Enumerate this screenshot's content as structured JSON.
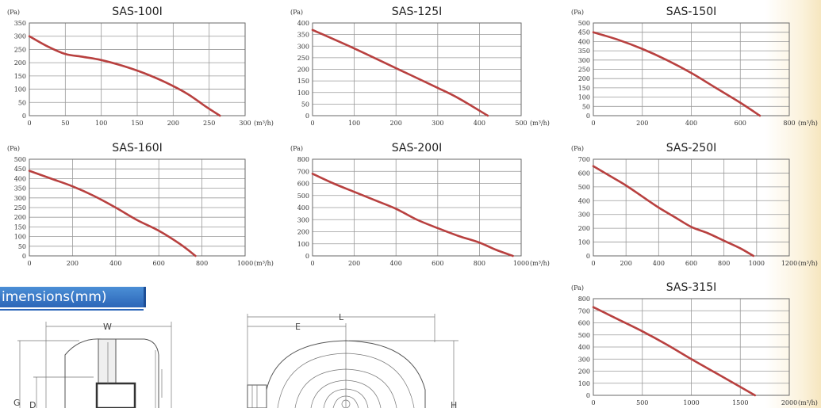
{
  "chart_data": [
    {
      "type": "line",
      "title": "SAS-100I",
      "ylabel": "(Pa)",
      "xunit": "(m³/h)",
      "xlim": [
        0,
        300
      ],
      "ylim": [
        0,
        350
      ],
      "x_ticks": [
        0,
        50,
        100,
        150,
        200,
        250,
        300
      ],
      "y_ticks": [
        0,
        50,
        100,
        150,
        200,
        250,
        300,
        350
      ],
      "grid": true,
      "series": [
        {
          "x": [
            0,
            25,
            50,
            75,
            100,
            130,
            160,
            190,
            220,
            245,
            265
          ],
          "y": [
            300,
            262,
            233,
            222,
            210,
            188,
            160,
            125,
            82,
            35,
            0
          ]
        }
      ]
    },
    {
      "type": "line",
      "title": "SAS-125I",
      "ylabel": "(Pa)",
      "xunit": "(m³/h)",
      "xlim": [
        0,
        500
      ],
      "ylim": [
        0,
        400
      ],
      "x_ticks": [
        0,
        100,
        200,
        300,
        400,
        500
      ],
      "y_ticks": [
        0,
        50,
        100,
        150,
        200,
        250,
        300,
        350,
        400
      ],
      "grid": true,
      "series": [
        {
          "x": [
            0,
            100,
            200,
            300,
            350,
            420
          ],
          "y": [
            370,
            290,
            205,
            120,
            75,
            0
          ]
        }
      ]
    },
    {
      "type": "line",
      "title": "SAS-150I",
      "ylabel": "(Pa)",
      "xunit": "(m³/h)",
      "xlim": [
        0,
        800
      ],
      "ylim": [
        0,
        500
      ],
      "x_ticks": [
        0,
        200,
        400,
        600,
        800
      ],
      "y_ticks": [
        0,
        50,
        100,
        150,
        200,
        250,
        300,
        350,
        400,
        450,
        500
      ],
      "grid": true,
      "series": [
        {
          "x": [
            0,
            100,
            200,
            300,
            400,
            500,
            600,
            680
          ],
          "y": [
            450,
            410,
            360,
            300,
            230,
            150,
            70,
            0
          ]
        }
      ]
    },
    {
      "type": "line",
      "title": "SAS-160I",
      "ylabel": "(Pa)",
      "xunit": "(m³/h)",
      "xlim": [
        0,
        1000
      ],
      "ylim": [
        0,
        500
      ],
      "x_ticks": [
        0,
        200,
        400,
        600,
        800,
        1000
      ],
      "y_ticks": [
        0,
        50,
        100,
        150,
        200,
        250,
        300,
        350,
        400,
        450,
        500
      ],
      "grid": true,
      "series": [
        {
          "x": [
            0,
            100,
            200,
            300,
            400,
            500,
            600,
            700,
            770
          ],
          "y": [
            440,
            400,
            360,
            310,
            250,
            185,
            130,
            60,
            0
          ]
        }
      ]
    },
    {
      "type": "line",
      "title": "SAS-200I",
      "ylabel": "(Pa)",
      "xunit": "(m³/h)",
      "xlim": [
        0,
        1000
      ],
      "ylim": [
        0,
        800
      ],
      "x_ticks": [
        0,
        200,
        400,
        600,
        800,
        1000
      ],
      "y_ticks": [
        0,
        100,
        200,
        300,
        400,
        500,
        600,
        700,
        800
      ],
      "grid": true,
      "series": [
        {
          "x": [
            0,
            100,
            200,
            300,
            400,
            500,
            600,
            700,
            800,
            880,
            960
          ],
          "y": [
            680,
            600,
            530,
            460,
            390,
            300,
            230,
            165,
            110,
            50,
            0
          ]
        }
      ]
    },
    {
      "type": "line",
      "title": "SAS-250I",
      "ylabel": "(Pa)",
      "xunit": "(m³/h)",
      "xlim": [
        0,
        1200
      ],
      "ylim": [
        0,
        700
      ],
      "x_ticks": [
        0,
        200,
        400,
        600,
        800,
        1000,
        1200
      ],
      "y_ticks": [
        0,
        100,
        200,
        300,
        400,
        500,
        600,
        700
      ],
      "grid": true,
      "series": [
        {
          "x": [
            0,
            100,
            200,
            300,
            400,
            500,
            600,
            700,
            800,
            900,
            980
          ],
          "y": [
            650,
            580,
            510,
            430,
            350,
            280,
            210,
            165,
            110,
            55,
            0
          ]
        }
      ]
    },
    {
      "type": "line",
      "title": "SAS-315I",
      "ylabel": "(Pa)",
      "xunit": "(m³/h)",
      "xlim": [
        0,
        2000
      ],
      "ylim": [
        0,
        800
      ],
      "x_ticks": [
        0,
        500,
        1000,
        1500,
        2000
      ],
      "y_ticks": [
        0,
        100,
        200,
        300,
        400,
        500,
        600,
        700,
        800
      ],
      "grid": true,
      "series": [
        {
          "x": [
            0,
            250,
            500,
            750,
            1000,
            1250,
            1500,
            1650
          ],
          "y": [
            730,
            630,
            530,
            420,
            300,
            185,
            70,
            0
          ]
        }
      ]
    }
  ],
  "dimensions": {
    "header": "imensions(mm)",
    "labels": {
      "w": "W",
      "g": "G",
      "d": "D",
      "l": "L",
      "e": "E",
      "h": "H"
    }
  }
}
